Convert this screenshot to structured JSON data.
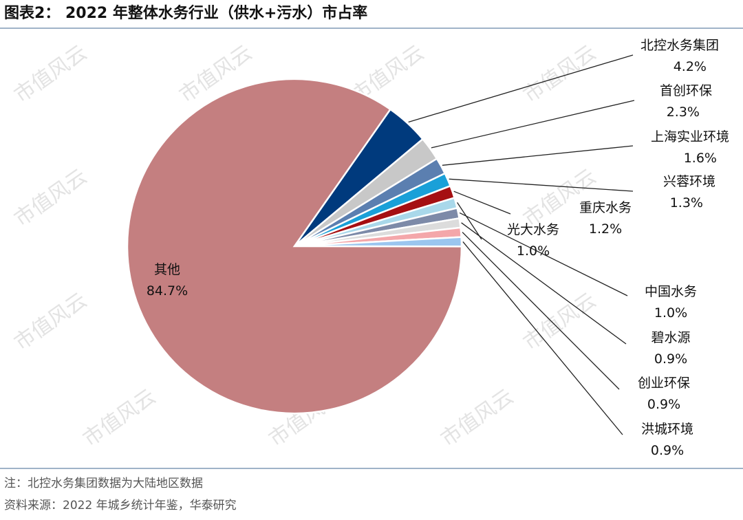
{
  "figure": {
    "title": "图表2： 2022 年整体水务行业（供水+污水）市占率",
    "note": "注：北控水务集团数据为大陆地区数据",
    "source": "资料来源：2022 年城乡统计年鉴，华泰研究",
    "watermark": "市值风云"
  },
  "chart_data": {
    "type": "pie",
    "title": "2022 年整体水务行业（供水+污水）市占率",
    "unit": "%",
    "slices": [
      {
        "name": "北控水务集团",
        "value": 4.2,
        "label": "4.2%",
        "color": "#003a7d"
      },
      {
        "name": "首创环保",
        "value": 2.3,
        "label": "2.3%",
        "color": "#c8c8c8"
      },
      {
        "name": "上海实业环境",
        "value": 1.6,
        "label": "1.6%",
        "color": "#5b7fb0"
      },
      {
        "name": "兴蓉环境",
        "value": 1.3,
        "label": "1.3%",
        "color": "#1aa0d8"
      },
      {
        "name": "重庆水务",
        "value": 1.2,
        "label": "1.2%",
        "color": "#a50f12"
      },
      {
        "name": "光大水务",
        "value": 1.0,
        "label": "1.0%",
        "color": "#a9d8ea"
      },
      {
        "name": "中国水务",
        "value": 1.0,
        "label": "1.0%",
        "color": "#7d8aa8"
      },
      {
        "name": "碧水源",
        "value": 0.9,
        "label": "0.9%",
        "color": "#dcdcdc"
      },
      {
        "name": "创业环保",
        "value": 0.9,
        "label": "0.9%",
        "color": "#f4a7aa"
      },
      {
        "name": "洪城环境",
        "value": 0.9,
        "label": "0.9%",
        "color": "#9bc6ef"
      },
      {
        "name": "其他",
        "value": 84.7,
        "label": "84.7%",
        "color": "#c47f80"
      }
    ]
  }
}
